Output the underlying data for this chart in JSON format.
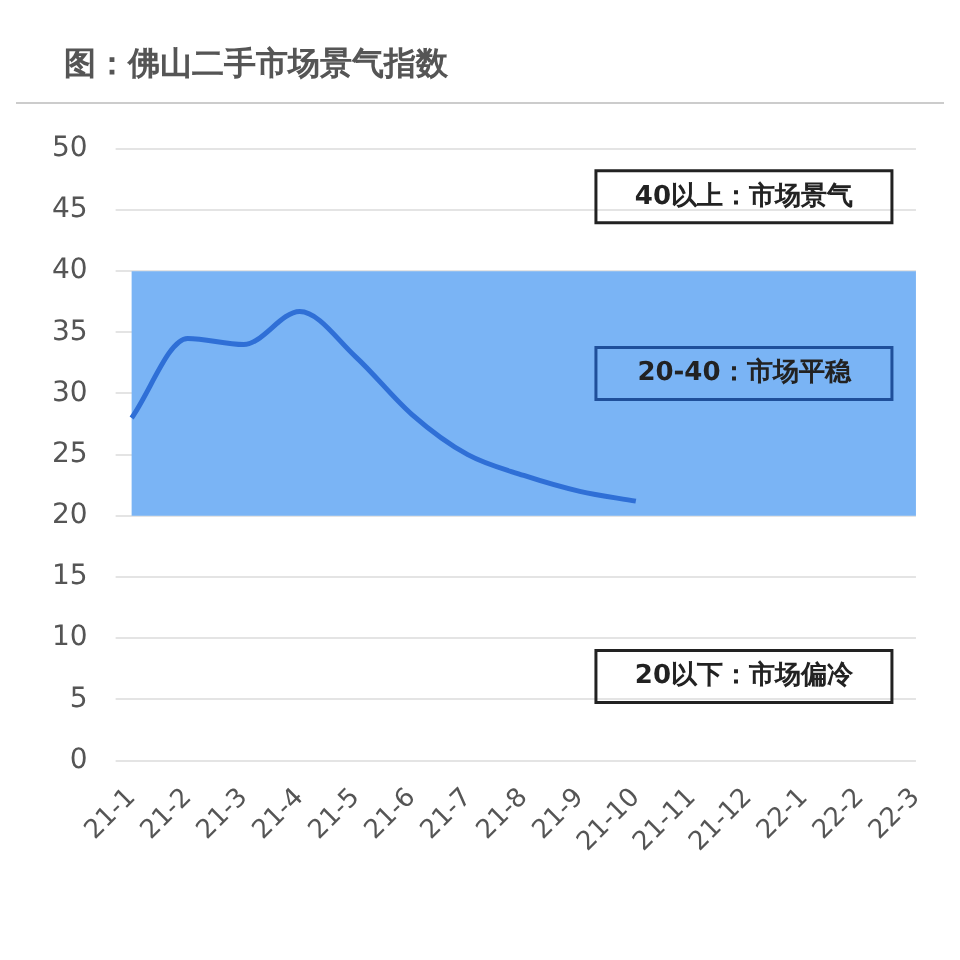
{
  "chart_data": {
    "type": "line",
    "title": "图：佛山二手市场景气指数",
    "categories": [
      "21-1",
      "21-2",
      "21-3",
      "21-4",
      "21-5",
      "21-6",
      "21-7",
      "21-8",
      "21-9",
      "21-10",
      "21-11",
      "21-12",
      "22-1",
      "22-2",
      "22-3"
    ],
    "series": [
      {
        "color": "#2f6fd6",
        "values": [
          28,
          34.5,
          34,
          36.7,
          33,
          28.3,
          25,
          23.3,
          22,
          21.2,
          null,
          null,
          null,
          null,
          null
        ]
      }
    ],
    "ylim": [
      0,
      50
    ],
    "yticks": [
      0,
      5,
      10,
      15,
      20,
      25,
      30,
      35,
      40,
      45,
      50
    ],
    "grid": "y",
    "legend": false,
    "marker": "none",
    "line_style": "solid",
    "bands": [
      {
        "axis": "y",
        "from": 20,
        "to": 40,
        "label": "20-40：市场平稳",
        "color": "#7ab4f5"
      }
    ],
    "annotations": [
      "40以上：市场景气",
      "20以下：市场偏冷"
    ]
  }
}
